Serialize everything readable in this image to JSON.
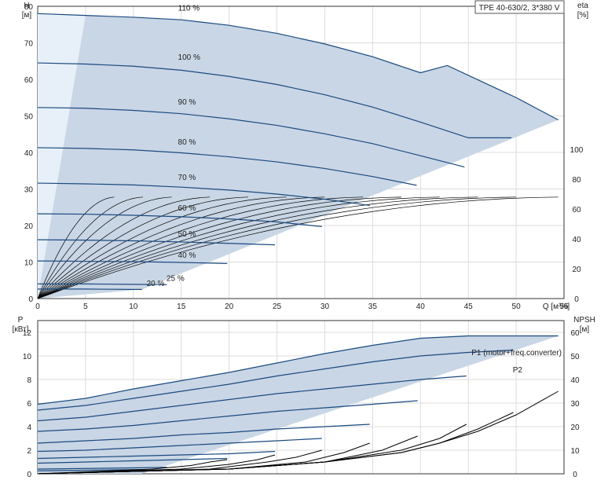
{
  "chart_data": [
    {
      "type": "line",
      "model": "TPE 40-630/2, 3*380 V",
      "xlabel": "Q [м³/ч]",
      "ylabel_left": "H\n[м]",
      "ylabel_right": "eta\n[%]",
      "xlim": [
        0,
        55
      ],
      "ylim": [
        0,
        80
      ],
      "ylim_right": [
        0,
        100
      ],
      "x_ticks": [
        0,
        5,
        10,
        15,
        20,
        25,
        30,
        35,
        40,
        45,
        50,
        55
      ],
      "y_ticks": [
        0,
        10,
        20,
        30,
        40,
        50,
        60,
        70,
        80
      ],
      "y_ticks_right": [
        0,
        20,
        40,
        60,
        80,
        100
      ],
      "grid": true,
      "colors": {
        "curve": "#1a4a80",
        "envelope": "#c9d6e5",
        "envelope_light": "#e7eff8",
        "eta": "#000000"
      },
      "speed_curves": [
        {
          "label": "110 %",
          "x": [
            0,
            5,
            10,
            15,
            20,
            25,
            30,
            35,
            40,
            42.8,
            50,
            54.4
          ],
          "y": [
            78,
            77.5,
            77,
            76.3,
            74.8,
            72.6,
            69.7,
            66.2,
            61.8,
            63.8,
            55,
            48.9
          ]
        },
        {
          "label": "100 %",
          "x": [
            0,
            5,
            10,
            15,
            20,
            25,
            30,
            35,
            40,
            45,
            49.5
          ],
          "y": [
            64.5,
            64.2,
            63.6,
            62.5,
            60.8,
            58.6,
            55.8,
            52.4,
            48.3,
            44,
            44
          ]
        },
        {
          "label": "90 %",
          "x": [
            0,
            5,
            10,
            15,
            20,
            25,
            30,
            35,
            40,
            44.6
          ],
          "y": [
            52.3,
            52.1,
            51.5,
            50.6,
            49.2,
            47.4,
            45.1,
            42.4,
            39.1,
            36
          ]
        },
        {
          "label": "80 %",
          "x": [
            0,
            5,
            10,
            15,
            20,
            25,
            30,
            35,
            39.6
          ],
          "y": [
            41.3,
            41.1,
            40.7,
            39.9,
            38.8,
            37.4,
            35.6,
            33.4,
            31
          ]
        },
        {
          "label": "70 %",
          "x": [
            0,
            5,
            10,
            15,
            20,
            25,
            30,
            34.7
          ],
          "y": [
            31.6,
            31.4,
            31.1,
            30.5,
            29.7,
            28.6,
            27.2,
            25.5
          ]
        },
        {
          "label": "60 %",
          "x": [
            0,
            5,
            10,
            15,
            20,
            25,
            29.7
          ],
          "y": [
            23.2,
            23.1,
            22.8,
            22.4,
            21.8,
            21,
            19.7
          ]
        },
        {
          "label": "50 %",
          "x": [
            0,
            5,
            10,
            15,
            20,
            24.8
          ],
          "y": [
            16.1,
            16,
            15.8,
            15.5,
            15.1,
            14.7
          ]
        },
        {
          "label": "40 %",
          "x": [
            0,
            5,
            10,
            15,
            19.8
          ],
          "y": [
            10.3,
            10.2,
            10.1,
            9.9,
            9.6
          ]
        },
        {
          "label": "25 %",
          "x": [
            0,
            5,
            10,
            13.5
          ],
          "y": [
            4,
            4,
            3.9,
            3.8
          ]
        },
        {
          "label": "20 %",
          "x": [
            0,
            5,
            10,
            10.9
          ],
          "y": [
            2.6,
            2.6,
            2.5,
            2.5
          ]
        }
      ],
      "eta_peak_q": [
        8,
        11,
        14,
        18,
        22,
        26,
        30,
        34,
        38,
        42,
        46,
        50,
        54.4
      ],
      "eta_peak_value": 68
    },
    {
      "type": "line",
      "xlabel": "",
      "ylabel_left": "P\n[кВт]",
      "ylabel_right": "NPSH\n[м]",
      "xlim": [
        0,
        55
      ],
      "ylim": [
        0,
        13
      ],
      "ylim_right": [
        0,
        65
      ],
      "y_ticks": [
        0,
        2,
        4,
        6,
        8,
        10,
        12
      ],
      "y_ticks_right": [
        0,
        10,
        20,
        30,
        40,
        50,
        60
      ],
      "grid": true,
      "series_labels": [
        "P1 (motor+freq.converter)",
        "P2"
      ],
      "power_curves": [
        {
          "x": [
            0,
            5,
            10,
            15,
            20,
            25,
            30,
            35,
            40,
            45,
            50,
            54.4
          ],
          "y": [
            5.9,
            6.4,
            7.2,
            7.9,
            8.6,
            9.4,
            10.2,
            10.9,
            11.5,
            11.7,
            11.7,
            11.7
          ]
        },
        {
          "x": [
            0,
            5,
            10,
            15,
            20,
            25,
            30,
            35,
            40,
            45,
            49.7
          ],
          "y": [
            5.4,
            5.8,
            6.4,
            7,
            7.6,
            8.3,
            8.9,
            9.5,
            10,
            10.3,
            10.5
          ]
        },
        {
          "x": [
            0,
            5,
            10,
            15,
            20,
            25,
            30,
            35,
            40,
            44.8
          ],
          "y": [
            4.5,
            4.8,
            5.3,
            5.8,
            6.3,
            6.8,
            7.2,
            7.6,
            8,
            8.3
          ]
        },
        {
          "x": [
            0,
            5,
            10,
            15,
            20,
            25,
            30,
            35,
            39.7
          ],
          "y": [
            3.6,
            3.8,
            4.1,
            4.5,
            4.9,
            5.3,
            5.6,
            5.9,
            6.2
          ]
        },
        {
          "x": [
            0,
            5,
            10,
            15,
            20,
            25,
            30,
            34.7
          ],
          "y": [
            2.6,
            2.8,
            3,
            3.3,
            3.5,
            3.8,
            4,
            4.2
          ]
        },
        {
          "x": [
            0,
            5,
            10,
            15,
            20,
            25,
            29.7
          ],
          "y": [
            1.9,
            2,
            2.2,
            2.4,
            2.6,
            2.8,
            3
          ]
        },
        {
          "x": [
            0,
            5,
            10,
            15,
            20,
            24.8
          ],
          "y": [
            1.3,
            1.4,
            1.5,
            1.6,
            1.7,
            1.9
          ]
        },
        {
          "x": [
            0,
            5,
            10,
            15,
            19.8
          ],
          "y": [
            0.9,
            1,
            1.1,
            1.2,
            1.3
          ]
        },
        {
          "x": [
            0,
            5,
            10,
            13.5
          ],
          "y": [
            0.4,
            0.45,
            0.5,
            0.55
          ]
        },
        {
          "x": [
            0,
            5,
            10,
            10.9
          ],
          "y": [
            0.25,
            0.3,
            0.35,
            0.35
          ]
        }
      ],
      "npsh_curves": [
        {
          "x": [
            0,
            20,
            30,
            38,
            42,
            46,
            50,
            54.4
          ],
          "y": [
            0,
            2,
            5,
            9,
            13,
            18,
            25,
            35
          ]
        },
        {
          "x": [
            0,
            20,
            30,
            38,
            42,
            46,
            49.7
          ],
          "y": [
            0,
            2,
            5,
            9,
            13,
            19,
            26
          ]
        },
        {
          "x": [
            0,
            20,
            30,
            38,
            42,
            44.8
          ],
          "y": [
            0,
            2,
            5,
            10,
            15,
            21
          ]
        },
        {
          "x": [
            0,
            20,
            30,
            36,
            39.7
          ],
          "y": [
            0,
            2,
            5,
            10,
            16
          ]
        },
        {
          "x": [
            0,
            20,
            28,
            32,
            34.7
          ],
          "y": [
            0,
            2,
            5,
            9,
            13
          ]
        },
        {
          "x": [
            0,
            18,
            24,
            27,
            29.7
          ],
          "y": [
            0,
            2,
            5,
            7,
            10
          ]
        },
        {
          "x": [
            0,
            15,
            20,
            23,
            24.8
          ],
          "y": [
            0,
            2,
            4,
            6,
            8
          ]
        },
        {
          "x": [
            0,
            12,
            16,
            18,
            19.8
          ],
          "y": [
            0,
            2,
            3.5,
            5,
            6
          ]
        }
      ]
    }
  ]
}
